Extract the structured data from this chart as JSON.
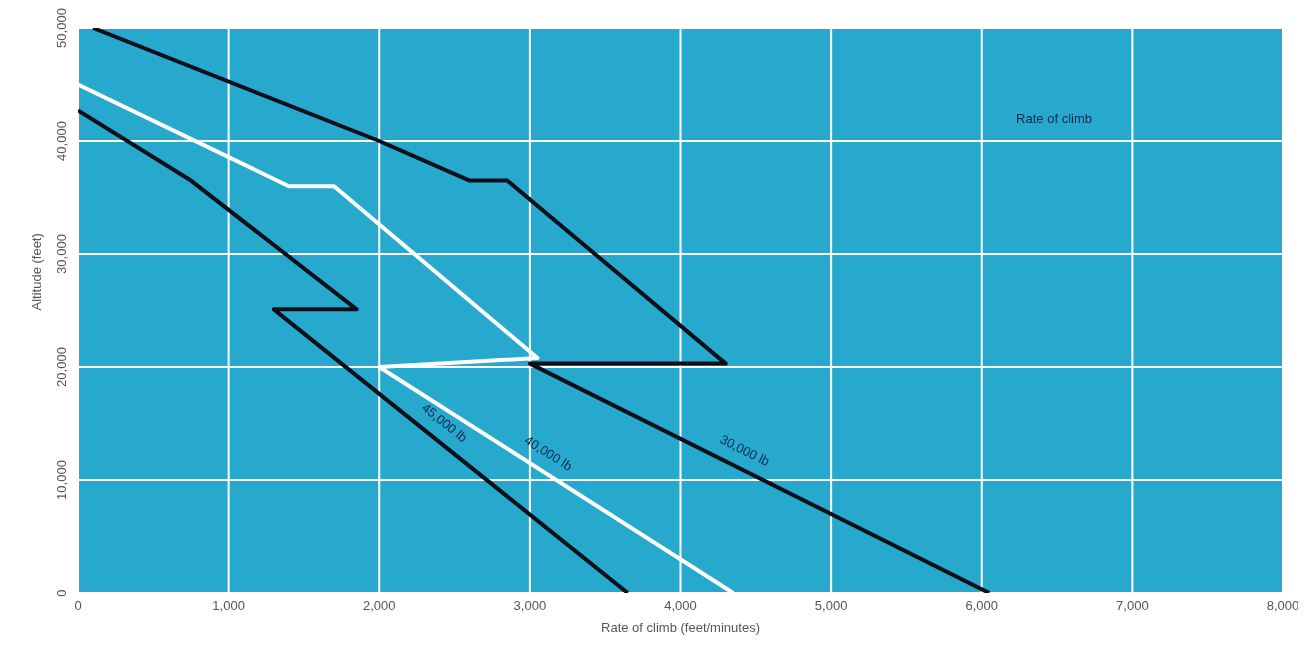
{
  "chart_data": {
    "type": "line",
    "xlabel": "Rate of climb (feet/minutes)",
    "ylabel": "Altitude (feet)",
    "annotations": [
      "Rate of climb"
    ],
    "xlim": [
      0,
      8000
    ],
    "xticks": [
      {
        "value": 0,
        "label": "0"
      },
      {
        "value": 1000,
        "label": "1,000"
      },
      {
        "value": 2000,
        "label": "2,000"
      },
      {
        "value": 3000,
        "label": "3,000"
      },
      {
        "value": 4000,
        "label": "4,000"
      },
      {
        "value": 5000,
        "label": "5,000"
      },
      {
        "value": 6000,
        "label": "6,000"
      },
      {
        "value": 7000,
        "label": "7,000"
      },
      {
        "value": 8000,
        "label": "8,000"
      }
    ],
    "ylim": [
      0,
      50000
    ],
    "yticks": [
      {
        "value": 0,
        "label": "0"
      },
      {
        "value": 10000,
        "label": "10,000"
      },
      {
        "value": 20000,
        "label": "20,000"
      },
      {
        "value": 30000,
        "label": "30,000"
      },
      {
        "value": 40000,
        "label": "40,000"
      },
      {
        "value": 50000,
        "label": "50,000"
      }
    ],
    "grid": true,
    "marker": "none",
    "line_style": "solid",
    "series": [
      {
        "name": "30,000 lb",
        "color": "#0a0f1a",
        "x": [
          100,
          2000,
          2600,
          2850,
          4300,
          3000,
          6050
        ],
        "values": [
          50000,
          40000,
          36500,
          36500,
          20300,
          20300,
          0
        ]
      },
      {
        "name": "40,000 lb",
        "color": "#ffffff",
        "x": [
          0,
          1400,
          1700,
          3050,
          2000,
          4350
        ],
        "values": [
          45000,
          36000,
          36000,
          20800,
          20000,
          0
        ]
      },
      {
        "name": "45,000 lb",
        "color": "#0a0f1a",
        "x": [
          0,
          750,
          1850,
          1300,
          3650
        ],
        "values": [
          42700,
          36500,
          25100,
          25100,
          0
        ]
      }
    ]
  }
}
